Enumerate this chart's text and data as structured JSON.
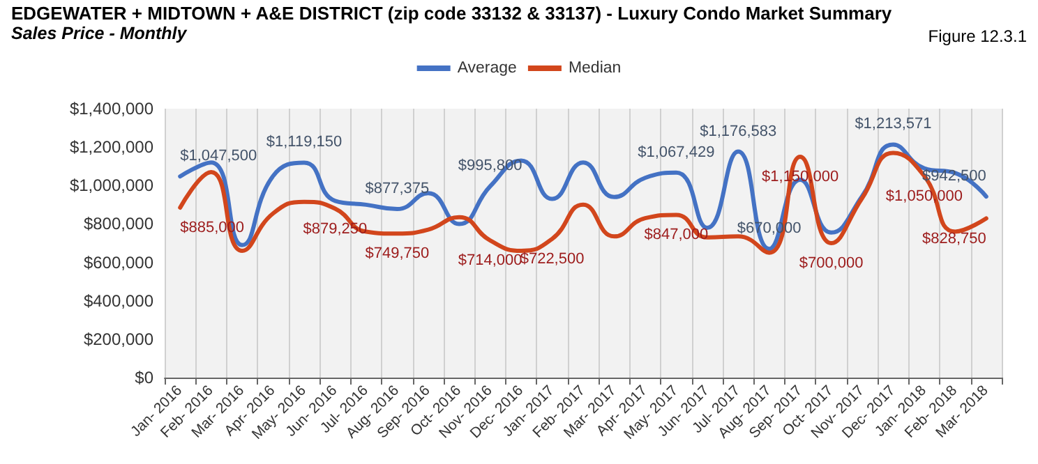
{
  "chart_data": {
    "type": "line",
    "title": "EDGEWATER + MIDTOWN + A&E DISTRICT (zip code 33132 & 33137) - Luxury Condo Market Summary",
    "subtitle": "Sales Price - Monthly",
    "annotations": [
      "Figure 12.3.1"
    ],
    "categories": [
      "Jan- 2016",
      "Feb- 2016",
      "Mar- 2016",
      "Apr- 2016",
      "May- 2016",
      "Jun- 2016",
      "Jul- 2016",
      "Aug- 2016",
      "Sep- 2016",
      "Oct- 2016",
      "Nov- 2016",
      "Dec- 2016",
      "Jan- 2017",
      "Feb- 2017",
      "Mar- 2017",
      "Apr- 2017",
      "May- 2017",
      "Jun- 2017",
      "Jul- 2017",
      "Aug- 2017",
      "Sep- 2017",
      "Oct- 2017",
      "Nov- 2017",
      "Dec- 2017",
      "Jan- 2018",
      "Feb- 2018",
      "Mar- 2018"
    ],
    "series": [
      {
        "name": "Average",
        "color": "#4472c4",
        "values": [
          1047500,
          1120000,
          690000,
          1050000,
          1119150,
          920000,
          900000,
          877375,
          960000,
          800000,
          995800,
          1130000,
          930000,
          1120000,
          940000,
          1040000,
          1067429,
          780000,
          1176583,
          670000,
          1030000,
          755000,
          945000,
          1213571,
          1090000,
          1065000,
          942500
        ],
        "value_labels": [
          "$1,047,500",
          null,
          null,
          null,
          "$1,119,150",
          null,
          null,
          "$877,375",
          null,
          null,
          "$995,800",
          null,
          null,
          null,
          null,
          null,
          "$1,067,429",
          null,
          "$1,176,583",
          "$670,000",
          null,
          null,
          null,
          "$1,213,571",
          null,
          null,
          "$942,500"
        ]
      },
      {
        "name": "Median",
        "color": "#d2461c",
        "values": [
          885000,
          1070000,
          660000,
          855000,
          915000,
          879250,
          760000,
          749750,
          770000,
          835000,
          714000,
          660000,
          722500,
          900000,
          735000,
          830000,
          847000,
          730000,
          735000,
          650000,
          1150000,
          700000,
          935000,
          1170000,
          1050000,
          760000,
          828750
        ],
        "value_labels": [
          "$885,000",
          null,
          null,
          null,
          null,
          "$879,250",
          null,
          "$749,750",
          null,
          null,
          "$714,000",
          null,
          "$722,500",
          null,
          null,
          null,
          "$847,000",
          null,
          null,
          null,
          "$1,150,000",
          "$700,000",
          null,
          null,
          "$1,050,000",
          null,
          "$828,750"
        ]
      }
    ],
    "ylim": [
      0,
      1400000
    ],
    "yticks": [
      {
        "value": 0,
        "label": "$0"
      },
      {
        "value": 200000,
        "label": "$200,000"
      },
      {
        "value": 400000,
        "label": "$400,000"
      },
      {
        "value": 600000,
        "label": "$600,000"
      },
      {
        "value": 800000,
        "label": "$800,000"
      },
      {
        "value": 1000000,
        "label": "$1,000,000"
      },
      {
        "value": 1200000,
        "label": "$1,200,000"
      },
      {
        "value": 1400000,
        "label": "$1,400,000"
      }
    ],
    "grid": "x",
    "legend": "top",
    "marker": "none",
    "line_style": "solid"
  }
}
